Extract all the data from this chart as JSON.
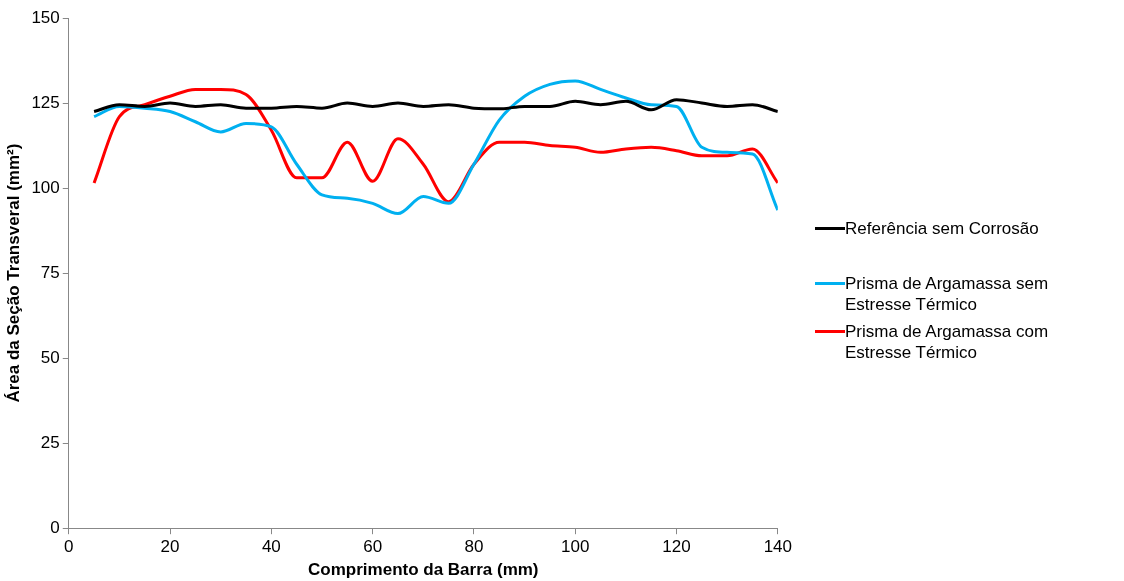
{
  "chart_data": {
    "type": "line",
    "xlabel": "Comprimento da Barra (mm)",
    "ylabel": "Área da Seção Transveral (mm²)",
    "x": [
      5,
      10,
      15,
      20,
      25,
      30,
      35,
      40,
      45,
      50,
      55,
      60,
      65,
      70,
      75,
      80,
      85,
      90,
      95,
      100,
      105,
      110,
      115,
      120,
      125,
      130,
      135,
      140
    ],
    "series": [
      {
        "name": "Referência sem Corrosão",
        "color": "#000000",
        "values": [
          122.5,
          124.5,
          124,
          125,
          124,
          124.5,
          123.5,
          123.5,
          124,
          123.5,
          125,
          124,
          125,
          124,
          124.5,
          123.5,
          123.3,
          124,
          124,
          125.5,
          124.5,
          125.5,
          123,
          126,
          125,
          124,
          124.5,
          122.5
        ]
      },
      {
        "name": "Prisma de Argamassa sem Estresse Térmico",
        "color": "#00b0f0",
        "values": [
          121,
          124,
          123.5,
          122.5,
          119.5,
          116.5,
          119,
          118,
          107,
          98,
          97,
          95.5,
          92.5,
          97.5,
          95.5,
          107,
          120,
          127,
          130.5,
          131.5,
          129,
          126.5,
          124.5,
          124,
          112,
          110.5,
          110,
          93.5
        ]
      },
      {
        "name": "Prisma de Argamassa com Estresse Térmico",
        "color": "#ff0000",
        "values": [
          101.5,
          121,
          124.5,
          127,
          129,
          129,
          127.5,
          117,
          103,
          103,
          113.5,
          102,
          114.5,
          107,
          96,
          107,
          113.5,
          113.5,
          112.5,
          112,
          110.5,
          111.5,
          112,
          111,
          109.5,
          109.5,
          111.5,
          101.5
        ]
      }
    ],
    "xlim": [
      0,
      140
    ],
    "xticks": [
      0,
      20,
      40,
      60,
      80,
      100,
      120,
      140
    ],
    "ylim": [
      0,
      150
    ],
    "yticks": [
      0,
      25,
      50,
      75,
      100,
      125,
      150
    ],
    "grid": false,
    "legend": "right",
    "marker": "none",
    "line_style": "solid"
  }
}
